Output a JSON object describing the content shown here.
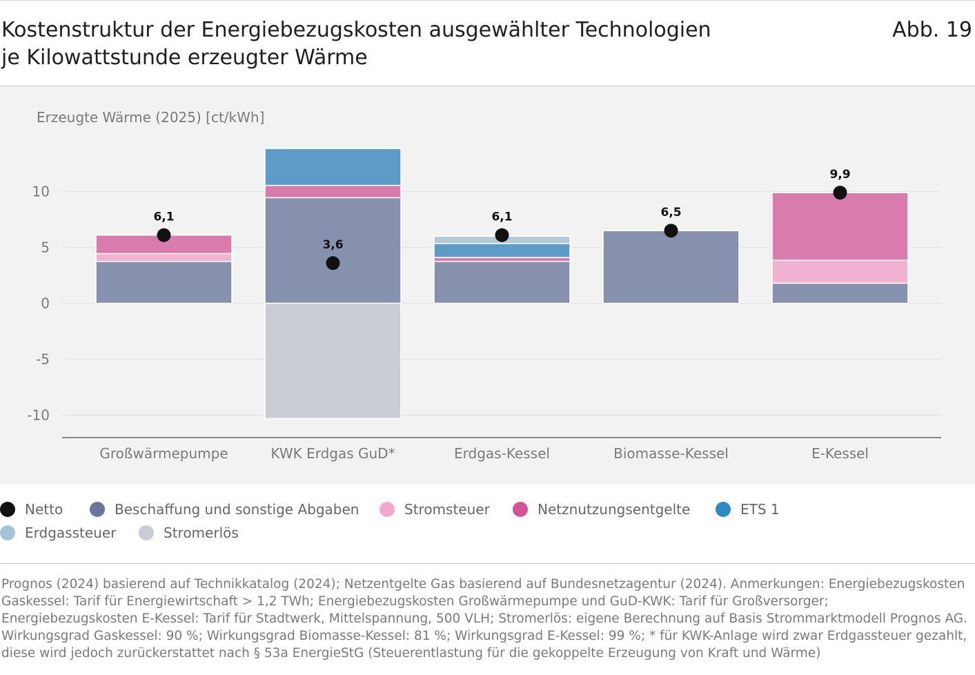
{
  "header": {
    "title_line1": "Kostenstruktur der Energiebezugskosten ausgewählter Technologien",
    "title_line2": "je Kilowattstunde erzeugter Wärme",
    "figure_number": "Abb. 19"
  },
  "chart_data": {
    "type": "bar",
    "stacked": true,
    "ylabel": "Erzeugte Wärme (2025) [ct/kWh]",
    "xlabel": "",
    "ylim": [
      -12,
      15
    ],
    "yticks": [
      10,
      5,
      0,
      -5,
      -10
    ],
    "ytick_labels": [
      "10",
      "5",
      "0",
      "-5",
      "-10"
    ],
    "categories": [
      "Großwärmepumpe",
      "KWK Erdgas GuD*",
      "Erdgas-Kessel",
      "Biomasse-Kessel",
      "E-Kessel"
    ],
    "series": [
      {
        "name": "Beschaffung und sonstige Abgaben",
        "color": "#8791ae",
        "values": [
          3.75,
          9.45,
          3.75,
          6.5,
          1.8
        ]
      },
      {
        "name": "Stromsteuer",
        "color": "#f2b2d1",
        "values": [
          0.7,
          0,
          0,
          0,
          2.05
        ]
      },
      {
        "name": "Netznutzungsentgelte",
        "color": "#d97bad",
        "values": [
          1.65,
          1.1,
          0.35,
          0,
          6.05
        ]
      },
      {
        "name": "ETS 1",
        "color": "#5e9bc7",
        "values": [
          0,
          3.3,
          1.25,
          0,
          0
        ]
      },
      {
        "name": "Erdgassteuer",
        "color": "#b3c9da",
        "values": [
          0,
          0,
          0.65,
          0,
          0
        ]
      },
      {
        "name": "Stromerlös",
        "color": "#c9ccd2",
        "values": [
          0,
          -10.3,
          0,
          0,
          0
        ]
      }
    ],
    "netto": {
      "name": "Netto",
      "color": "#111111",
      "values": [
        6.1,
        3.6,
        6.1,
        6.5,
        9.9
      ],
      "labels": [
        "6,1",
        "3,6",
        "6,1",
        "6,5",
        "9,9"
      ]
    }
  },
  "legend": {
    "items": [
      {
        "label": "Netto",
        "color": "#111111"
      },
      {
        "label": "Beschaffung und sonstige Abgaben",
        "color": "#6b7599"
      },
      {
        "label": "Stromsteuer",
        "color": "#f0a8cc"
      },
      {
        "label": "Netznutzungsentgelte",
        "color": "#d2559a"
      },
      {
        "label": "ETS 1",
        "color": "#2e8ac0"
      },
      {
        "label": "Erdgassteuer",
        "color": "#a6c2d8"
      },
      {
        "label": "Stromerlös",
        "color": "#c9ccd2"
      }
    ]
  },
  "source": {
    "text": "Prognos (2024) basierend auf Technikkatalog (2024); Netzentgelte Gas basierend auf Bundesnetzagentur (2024). Anmerkungen: Energiebezugskosten Gaskessel: Tarif für Energiewirtschaft > 1,2 TWh; Energiebezugskosten Großwärmepumpe und GuD-KWK: Tarif für Großversorger; Energiebezugskosten E-Kessel: Tarif für Stadtwerk, Mittelspannung, 500 VLH; Stromerlös: eigene Berechnung auf Basis Strommarktmodell Prognos AG. Wirkungsgrad Gaskessel: 90 %; Wirkungsgrad Biomasse-Kessel: 81 %; Wirkungsgrad E-Kessel: 99 %; * für KWK-Anlage wird zwar Erdgassteuer gezahlt, diese wird jedoch zurückerstattet nach § 53a EnergieStG (Steuerentlastung für die gekoppelte Erzeugung von Kraft und Wärme)"
  }
}
